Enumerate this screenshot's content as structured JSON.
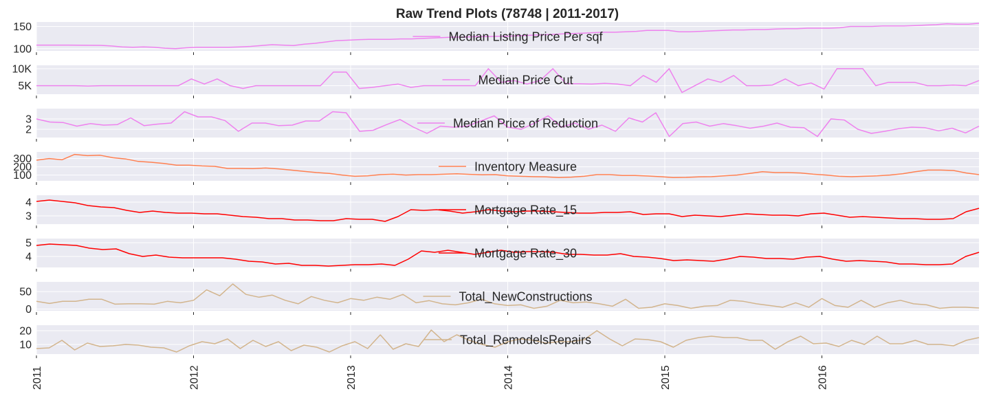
{
  "title": "Raw Trend Plots (78748 | 2011-2017)",
  "chart_data": {
    "type": "line",
    "title": "Raw Trend Plots (78748 | 2011-2017)",
    "grid": true,
    "legend": "center",
    "x_tick_labels": [
      "2011",
      "2012",
      "2013",
      "2014",
      "2015",
      "2016"
    ],
    "x_start": "2011-01",
    "x_end": "2016-12",
    "series": [
      {
        "name": "Median Listing Price Per sqf",
        "color": "#ee82ee",
        "ylim": [
          95,
          160
        ],
        "yticks": [
          100,
          150
        ],
        "ytick_labels": [
          "100",
          "150"
        ],
        "values": [
          108,
          108,
          108,
          108,
          107.8,
          107.6,
          107.4,
          106,
          104,
          103,
          104,
          103,
          101,
          100,
          102,
          103,
          103,
          103,
          103,
          104,
          105,
          107,
          109,
          108,
          107,
          110,
          112,
          115,
          118,
          119,
          120,
          121,
          121,
          121,
          122,
          122,
          123,
          124,
          125,
          126,
          126,
          127,
          127,
          128,
          128,
          129,
          130,
          131,
          132,
          133,
          134,
          135,
          136,
          137,
          137,
          138,
          139,
          141,
          141,
          141,
          138,
          138,
          139,
          140,
          141,
          142,
          142,
          143,
          143,
          144,
          145,
          145,
          146,
          146,
          146,
          147,
          150,
          150,
          150,
          151,
          151,
          151,
          152,
          153,
          154,
          156,
          155,
          155,
          157
        ]
      },
      {
        "name": "Median Price Cut",
        "color": "#ee82ee",
        "ylim": [
          2500,
          11000
        ],
        "yticks": [
          5000,
          10000
        ],
        "ytick_labels": [
          "5K",
          "10K"
        ],
        "values": [
          5000,
          5000,
          5000,
          5000,
          4900,
          5000,
          5000,
          5000,
          5000,
          5000,
          5000,
          5000,
          7000,
          5500,
          7000,
          5000,
          4200,
          5000,
          5000,
          5000,
          5000,
          5000,
          5000,
          9000,
          9000,
          4200,
          4500,
          5000,
          5500,
          4500,
          5000,
          5000,
          5000,
          5000,
          5000,
          10000,
          6000,
          6500,
          5500,
          6500,
          10000,
          5600,
          5600,
          5500,
          5700,
          5500,
          5000,
          8000,
          6000,
          10000,
          3000,
          5000,
          7000,
          6000,
          8000,
          5000,
          5000,
          5200,
          7000,
          5000,
          5800,
          4000,
          10000,
          10000,
          10000,
          5000,
          6000,
          6000,
          6000,
          5000,
          5000,
          5200,
          5000,
          6500
        ]
      },
      {
        "name": "Median Price of Reduction",
        "color": "#ee82ee",
        "ylim": [
          1.2,
          4.0
        ],
        "yticks": [
          2,
          3
        ],
        "ytick_labels": [
          "2",
          "3"
        ],
        "values": [
          3.0,
          2.7,
          2.65,
          2.3,
          2.55,
          2.4,
          2.45,
          3.1,
          2.35,
          2.5,
          2.6,
          3.7,
          3.2,
          3.2,
          2.85,
          1.8,
          2.6,
          2.6,
          2.35,
          2.4,
          2.8,
          2.8,
          3.7,
          3.6,
          1.8,
          1.9,
          2.45,
          2.95,
          2.2,
          1.6,
          2.3,
          2.2,
          2.3,
          2.8,
          3.3,
          2.2,
          2.0,
          2.6,
          3.3,
          2.2,
          2.6,
          2.0,
          2.4,
          1.8,
          3.1,
          2.7,
          3.6,
          1.3,
          2.55,
          2.7,
          2.3,
          2.55,
          2.35,
          2.1,
          2.3,
          2.6,
          2.2,
          2.15,
          1.3,
          3.0,
          2.9,
          2.0,
          1.6,
          1.8,
          2.05,
          2.2,
          2.15,
          1.85,
          2.1,
          1.65,
          2.3
        ]
      },
      {
        "name": "Inventory Measure",
        "color": "#ff7f50",
        "ylim": [
          30,
          380
        ],
        "yticks": [
          100,
          200,
          300
        ],
        "ytick_labels": [
          "100",
          "200",
          "300"
        ],
        "values": [
          280,
          300,
          285,
          350,
          335,
          340,
          310,
          295,
          265,
          255,
          240,
          220,
          220,
          210,
          205,
          180,
          180,
          178,
          185,
          175,
          160,
          145,
          130,
          120,
          100,
          85,
          90,
          105,
          110,
          100,
          105,
          105,
          110,
          115,
          108,
          103,
          105,
          90,
          85,
          80,
          78,
          70,
          75,
          85,
          105,
          105,
          95,
          95,
          88,
          80,
          70,
          72,
          78,
          80,
          90,
          100,
          120,
          140,
          130,
          130,
          125,
          110,
          100,
          85,
          80,
          85,
          90,
          100,
          115,
          140,
          160,
          160,
          155,
          125,
          105
        ]
      },
      {
        "name": "Mortgage Rate_15",
        "color": "#ff0000",
        "ylim": [
          2.4,
          4.5
        ],
        "yticks": [
          3,
          4
        ],
        "ytick_labels": [
          "3",
          "4"
        ],
        "values": [
          4.05,
          4.15,
          4.05,
          3.95,
          3.75,
          3.65,
          3.6,
          3.4,
          3.25,
          3.35,
          3.25,
          3.2,
          3.2,
          3.15,
          3.15,
          3.05,
          2.95,
          2.9,
          2.8,
          2.8,
          2.7,
          2.7,
          2.65,
          2.65,
          2.8,
          2.75,
          2.75,
          2.6,
          2.95,
          3.45,
          3.4,
          3.45,
          3.35,
          3.2,
          3.3,
          3.45,
          3.35,
          3.3,
          3.35,
          3.35,
          3.3,
          3.25,
          3.2,
          3.2,
          3.25,
          3.25,
          3.3,
          3.1,
          3.15,
          3.15,
          2.95,
          3.05,
          3.0,
          2.95,
          3.05,
          3.15,
          3.1,
          3.05,
          3.05,
          3.0,
          3.15,
          3.2,
          3.05,
          2.9,
          2.95,
          2.9,
          2.85,
          2.8,
          2.8,
          2.75,
          2.75,
          2.8,
          3.3,
          3.55
        ]
      },
      {
        "name": "Mortgage Rate_30",
        "color": "#ff0000",
        "ylim": [
          3.2,
          5.3
        ],
        "yticks": [
          4,
          5
        ],
        "ytick_labels": [
          "4",
          "5"
        ],
        "values": [
          4.8,
          4.9,
          4.85,
          4.8,
          4.6,
          4.5,
          4.55,
          4.2,
          4.0,
          4.1,
          3.95,
          3.9,
          3.9,
          3.9,
          3.9,
          3.8,
          3.65,
          3.6,
          3.45,
          3.5,
          3.35,
          3.35,
          3.3,
          3.35,
          3.4,
          3.4,
          3.45,
          3.35,
          3.8,
          4.4,
          4.3,
          4.45,
          4.3,
          4.15,
          4.3,
          4.45,
          4.3,
          4.35,
          4.35,
          4.3,
          4.15,
          4.15,
          4.1,
          4.1,
          4.2,
          4.0,
          3.95,
          3.85,
          3.7,
          3.75,
          3.7,
          3.65,
          3.8,
          4.0,
          3.95,
          3.85,
          3.85,
          3.8,
          3.95,
          4.0,
          3.8,
          3.65,
          3.7,
          3.65,
          3.6,
          3.45,
          3.45,
          3.4,
          3.4,
          3.45,
          4.0,
          4.3
        ]
      },
      {
        "name": "Total_NewConstructions",
        "color": "#d2b48c",
        "ylim": [
          -5,
          78
        ],
        "yticks": [
          0,
          50
        ],
        "ytick_labels": [
          "0",
          "50"
        ],
        "values": [
          22,
          16,
          22,
          22,
          28,
          28,
          14,
          15,
          15,
          14,
          22,
          18,
          25,
          55,
          38,
          72,
          42,
          34,
          40,
          25,
          15,
          36,
          25,
          18,
          30,
          25,
          34,
          28,
          42,
          18,
          24,
          15,
          12,
          18,
          28,
          15,
          10,
          12,
          2,
          8,
          25,
          18,
          20,
          15,
          8,
          28,
          2,
          5,
          15,
          10,
          2,
          8,
          10,
          25,
          22,
          15,
          10,
          5,
          18,
          5,
          30,
          10,
          5,
          25,
          5,
          18,
          25,
          15,
          12,
          2,
          5,
          5,
          3
        ]
      },
      {
        "name": "Total_RemodelsRepairs",
        "color": "#d2b48c",
        "ylim": [
          3,
          24
        ],
        "yticks": [
          10,
          20
        ],
        "ytick_labels": [
          "10",
          "20"
        ],
        "values": [
          7,
          7.5,
          13,
          6,
          11,
          8.5,
          9,
          10,
          9.5,
          8,
          7.5,
          4.5,
          9,
          12,
          10.5,
          14,
          7,
          13,
          8.5,
          12,
          5.5,
          9.5,
          8,
          4.5,
          9,
          12,
          7,
          17,
          6.5,
          10.5,
          8.5,
          20.5,
          12,
          17,
          13,
          10,
          8,
          12,
          14,
          13,
          11,
          12,
          12,
          13.5,
          20,
          14,
          9,
          14,
          13.5,
          12,
          8,
          13,
          15,
          16,
          15,
          15,
          13,
          13,
          6.5,
          12,
          16,
          10.5,
          11,
          8.5,
          13,
          10,
          16,
          10.5,
          10.5,
          13,
          10,
          10,
          9,
          13,
          15
        ]
      }
    ]
  }
}
